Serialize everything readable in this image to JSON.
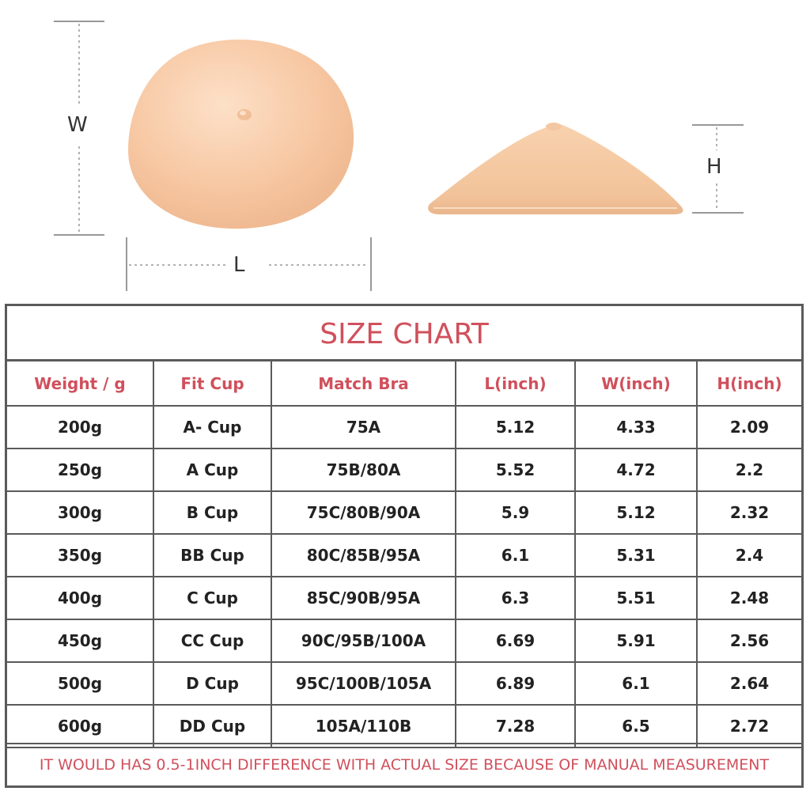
{
  "dimensions": {
    "w_label": "W",
    "l_label": "L",
    "h_label": "H"
  },
  "chart": {
    "title": "SIZE CHART",
    "headers": [
      "Weight / g",
      "Fit Cup",
      "Match Bra",
      "L(inch)",
      "W(inch)",
      "H(inch)"
    ],
    "rows": [
      [
        "200g",
        "A- Cup",
        "75A",
        "5.12",
        "4.33",
        "2.09"
      ],
      [
        "250g",
        "A Cup",
        "75B/80A",
        "5.52",
        "4.72",
        "2.2"
      ],
      [
        "300g",
        "B Cup",
        "75C/80B/90A",
        "5.9",
        "5.12",
        "2.32"
      ],
      [
        "350g",
        "BB Cup",
        "80C/85B/95A",
        "6.1",
        "5.31",
        "2.4"
      ],
      [
        "400g",
        "C Cup",
        "85C/90B/95A",
        "6.3",
        "5.51",
        "2.48"
      ],
      [
        "450g",
        "CC Cup",
        "90C/95B/100A",
        "6.69",
        "5.91",
        "2.56"
      ],
      [
        "500g",
        "D Cup",
        "95C/100B/105A",
        "6.89",
        "6.1",
        "2.64"
      ],
      [
        "600g",
        "DD Cup",
        "105A/110B",
        "7.28",
        "6.5",
        "2.72"
      ]
    ],
    "note": "IT WOULD HAS 0.5-1INCH DIFFERENCE WITH ACTUAL SIZE BECAUSE OF MANUAL MEASUREMENT"
  },
  "colors": {
    "accent": "#d0505c",
    "border": "#5a5a5a",
    "skin": "#f6c9a4"
  }
}
